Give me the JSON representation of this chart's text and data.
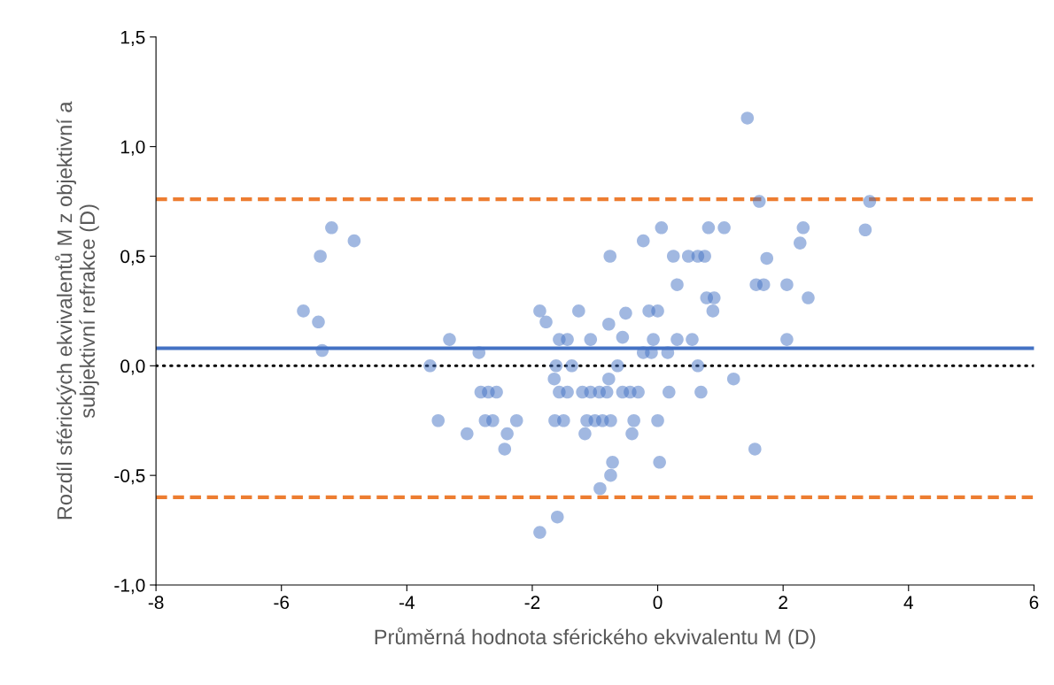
{
  "chart_data": {
    "type": "scatter",
    "xlabel": "Průměrná hodnota sférického ekvivalentu M (D)",
    "ylabel": "Rozdíl sférických ekvivalentů M z objektivní a\nsubjektivní refrakce (D)",
    "xlim": [
      -8,
      6
    ],
    "xticks": [
      -8,
      -6,
      -4,
      -2,
      0,
      2,
      4,
      6
    ],
    "ylim": [
      -1.0,
      1.5
    ],
    "yticks": [
      {
        "value": -1.0,
        "label": "-1,0"
      },
      {
        "value": -0.5,
        "label": "-0,5"
      },
      {
        "value": 0.0,
        "label": "0,0"
      },
      {
        "value": 0.5,
        "label": "0,5"
      },
      {
        "value": 1.0,
        "label": "1,0"
      },
      {
        "value": 1.5,
        "label": "1,5"
      }
    ],
    "grid": false,
    "legend": false,
    "marker": "circle",
    "series": [
      {
        "color": "#4472c4",
        "x": [
          -5.65,
          -5.41,
          -5.35,
          -5.38,
          -5.2,
          -4.84,
          -3.63,
          -3.32,
          -3.5,
          -2.85,
          -3.04,
          -2.82,
          -2.7,
          -2.57,
          -2.75,
          -2.63,
          -2.25,
          -2.4,
          -2.44,
          -1.88,
          -1.78,
          -1.88,
          -1.6,
          -1.62,
          -1.65,
          -1.64,
          -1.5,
          -1.57,
          -1.44,
          -1.57,
          -1.44,
          -1.37,
          -1.26,
          -1.2,
          -1.07,
          -0.93,
          -0.81,
          -1.16,
          -1.13,
          -1.0,
          -0.88,
          -0.75,
          -1.07,
          -0.78,
          -0.78,
          -0.76,
          -0.72,
          -0.75,
          -0.92,
          -0.64,
          -0.51,
          -0.56,
          -0.56,
          -0.44,
          -0.31,
          -0.38,
          -0.41,
          -0.23,
          -0.23,
          -0.14,
          -0.1,
          -0.07,
          0.0,
          0.0,
          0.03,
          0.06,
          0.18,
          0.16,
          0.25,
          0.31,
          0.31,
          0.49,
          0.55,
          0.64,
          0.75,
          0.64,
          0.69,
          0.78,
          0.9,
          0.81,
          0.88,
          1.06,
          1.21,
          1.43,
          1.57,
          1.55,
          1.62,
          1.69,
          1.74,
          2.06,
          2.06,
          2.27,
          2.32,
          2.4,
          3.31,
          3.38
        ],
        "values": [
          0.25,
          0.2,
          0.07,
          0.5,
          0.63,
          0.57,
          0.0,
          0.12,
          -0.25,
          0.06,
          -0.31,
          -0.12,
          -0.12,
          -0.12,
          -0.25,
          -0.25,
          -0.25,
          -0.31,
          -0.38,
          0.25,
          0.2,
          -0.76,
          -0.69,
          0.0,
          -0.06,
          -0.25,
          -0.25,
          -0.12,
          -0.12,
          0.12,
          0.12,
          0.0,
          0.25,
          -0.12,
          -0.12,
          -0.12,
          -0.12,
          -0.31,
          -0.25,
          -0.25,
          -0.25,
          -0.25,
          0.12,
          -0.06,
          0.19,
          0.5,
          -0.44,
          -0.5,
          -0.56,
          0.0,
          0.24,
          0.13,
          -0.12,
          -0.12,
          -0.12,
          -0.25,
          -0.31,
          0.06,
          0.57,
          0.25,
          0.06,
          0.12,
          0.25,
          -0.25,
          -0.44,
          0.63,
          -0.12,
          0.06,
          0.5,
          0.37,
          0.12,
          0.5,
          0.12,
          0.5,
          0.5,
          0.0,
          -0.12,
          0.31,
          0.31,
          0.63,
          0.25,
          0.63,
          -0.06,
          1.13,
          0.37,
          -0.38,
          0.75,
          0.37,
          0.49,
          0.37,
          0.12,
          0.56,
          0.63,
          0.31,
          0.62,
          0.75
        ]
      }
    ],
    "ref_lines": [
      {
        "axis": "y",
        "value": 0.08,
        "color": "#4472c4",
        "line_style": "solid"
      },
      {
        "axis": "y",
        "value": 0.76,
        "color": "#ed7d31",
        "line_style": "dashed"
      },
      {
        "axis": "y",
        "value": -0.6,
        "color": "#ed7d31",
        "line_style": "dashed"
      },
      {
        "axis": "y",
        "value": 0.0,
        "color": "#000000",
        "line_style": "dotted"
      }
    ]
  }
}
